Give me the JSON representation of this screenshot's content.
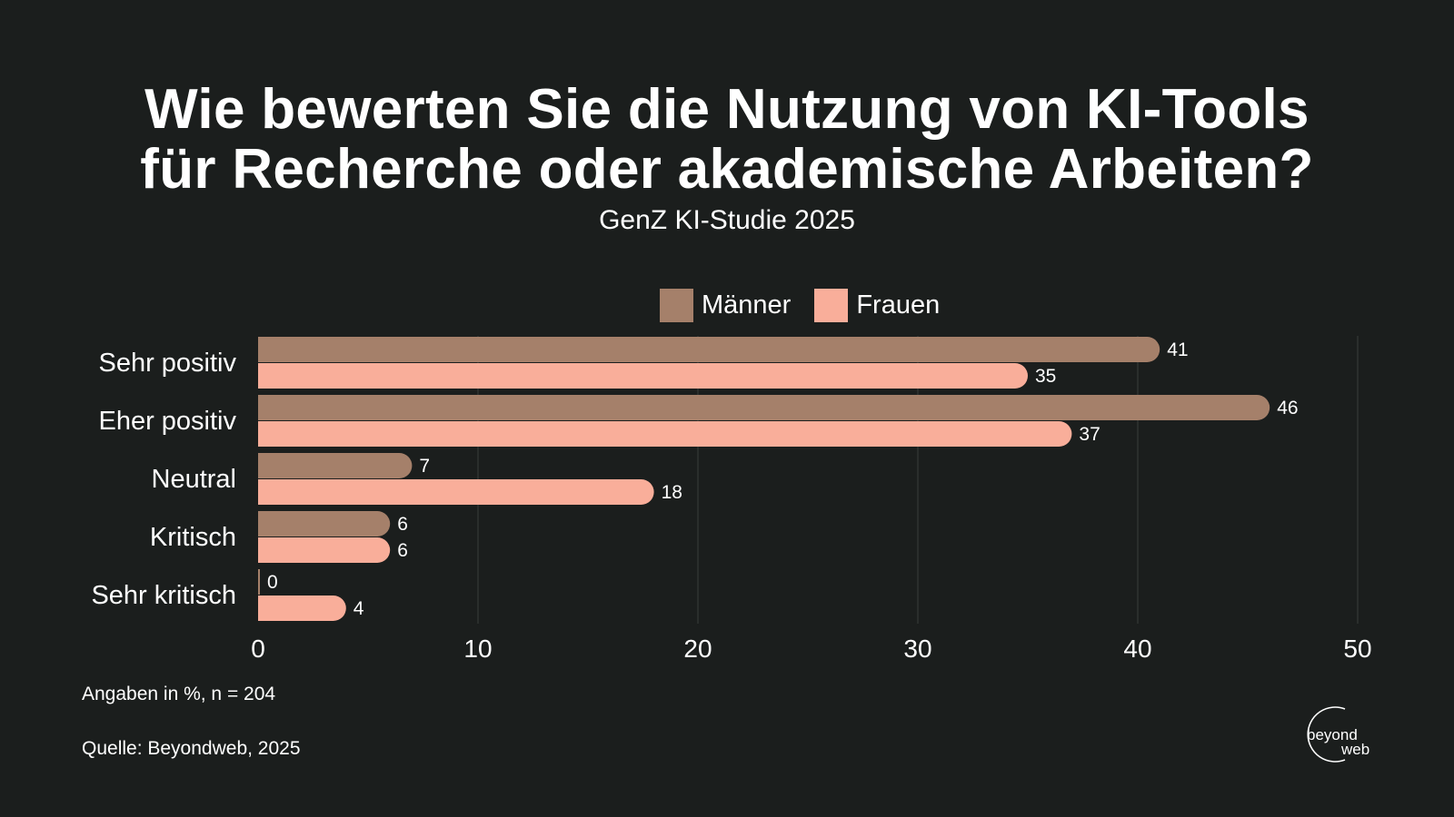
{
  "title_line1": "Wie bewerten Sie die Nutzung von KI-Tools",
  "title_line2": "für Recherche oder akademische Arbeiten?",
  "subtitle": "GenZ KI-Studie 2025",
  "notes": {
    "unit": "Angaben in %, n = 204",
    "source": "Quelle: Beyondweb, 2025"
  },
  "logo": {
    "line1": "beyond",
    "line2": "web"
  },
  "colors": {
    "background": "#1b1e1d",
    "maenner": "#a5806a",
    "frauen": "#f9ae9a",
    "grid": "#3a3d3c",
    "text": "#ffffff"
  },
  "chart_data": {
    "type": "bar",
    "orientation": "horizontal",
    "categories": [
      "Sehr positiv",
      "Eher positiv",
      "Neutral",
      "Kritisch",
      "Sehr kritisch"
    ],
    "series": [
      {
        "name": "Männer",
        "values": [
          41,
          46,
          7,
          6,
          0
        ],
        "color": "#a5806a"
      },
      {
        "name": "Frauen",
        "values": [
          35,
          37,
          18,
          6,
          4
        ],
        "color": "#f9ae9a"
      }
    ],
    "xlim": [
      0,
      50
    ],
    "xticks": [
      0,
      10,
      20,
      30,
      40,
      50
    ],
    "grid": true,
    "legend": "top-center",
    "data_labels": true
  }
}
